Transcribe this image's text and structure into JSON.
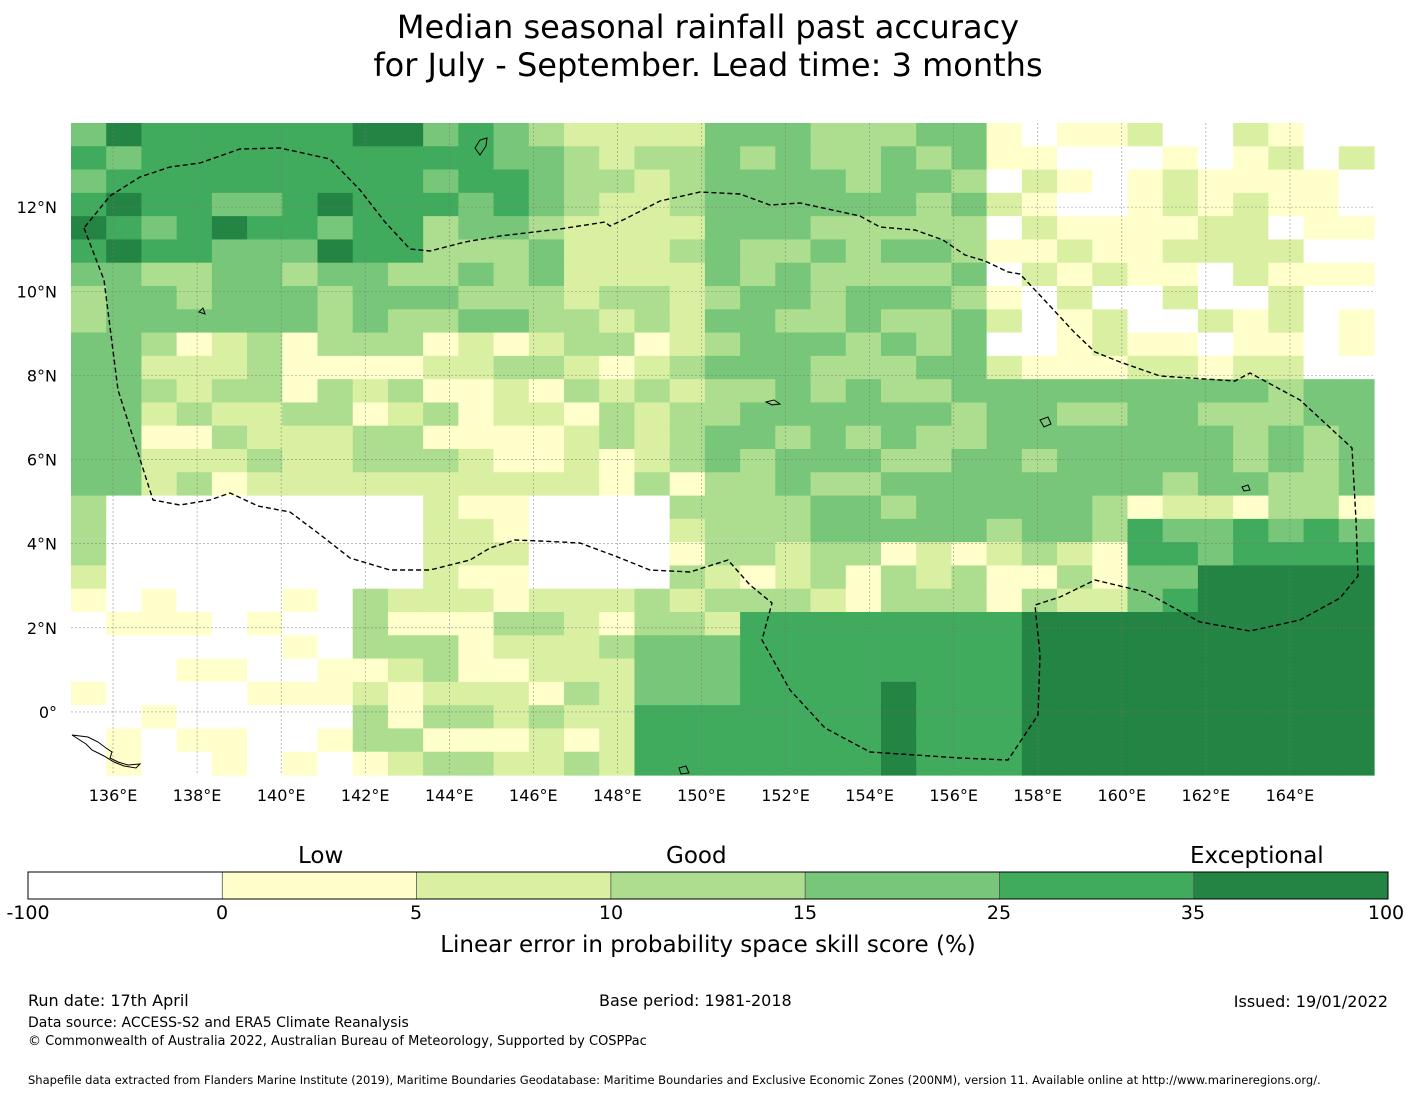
{
  "title": {
    "line1": "Median seasonal rainfall past accuracy",
    "line2": "for July - September. Lead time: 3 months"
  },
  "map": {
    "lon_range": [
      135,
      166
    ],
    "lat_range": [
      -1.5,
      14
    ],
    "lon_ticks": [
      "136°E",
      "138°E",
      "140°E",
      "142°E",
      "144°E",
      "146°E",
      "148°E",
      "150°E",
      "152°E",
      "154°E",
      "156°E",
      "158°E",
      "160°E",
      "162°E",
      "164°E"
    ],
    "lat_ticks": [
      "12°N",
      "10°N",
      "8°N",
      "6°N",
      "4°N",
      "2°N",
      "0°"
    ],
    "gridlines": true,
    "boundary_line": "dashed EEZ outline"
  },
  "colorbar": {
    "categories": [
      "Low",
      "Good",
      "Exceptional"
    ],
    "ticks": [
      "-100",
      "0",
      "5",
      "10",
      "15",
      "25",
      "35",
      "100"
    ],
    "colors": [
      "#ffffff",
      "#ffffcc",
      "#d9f0a3",
      "#addd8e",
      "#78c679",
      "#41ab5d",
      "#238443"
    ],
    "label": "Linear error in probability space skill score (%)"
  },
  "footer": {
    "run_date": "Run date: 17th April",
    "base_period": "Base period: 1981-2018",
    "issued": "Issued: 19/01/2022",
    "data_source": "Data source: ACCESS-S2 and ERA5 Climate Reanalysis",
    "copyright": "© Commonwealth of Australia 2022, Australian Bureau of Meteorology, Supported by COSPPac",
    "shapefile": "Shapefile data extracted from Flanders Marine Institute (2019), Maritime Boundaries Geodatabase: Maritime Boundaries and Exclusive Economic Zones (200NM), version 11. Available online at http://www.marineregions.org/."
  }
}
